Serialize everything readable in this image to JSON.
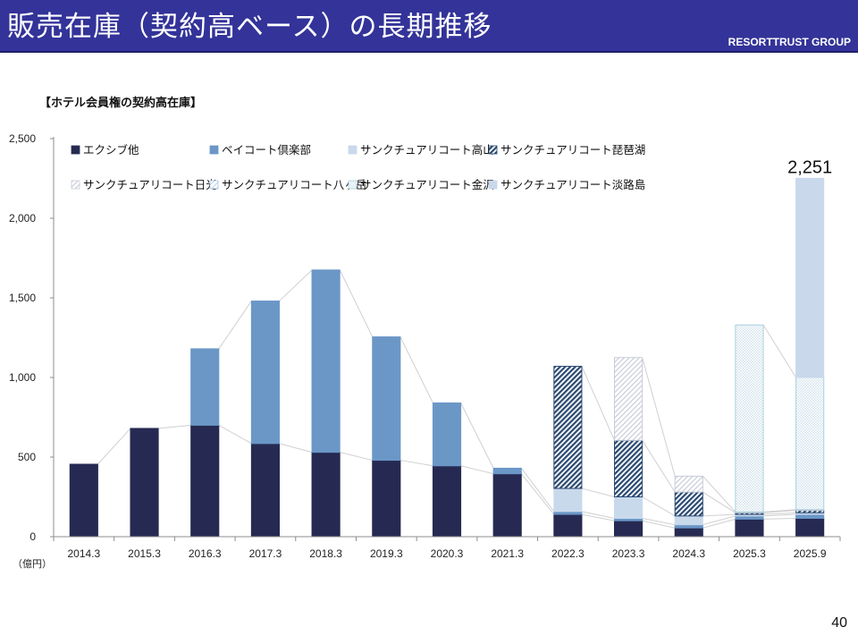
{
  "header": {
    "title": "販売在庫（契約高ベース）の長期推移",
    "brand": "RESORTTRUST GROUP"
  },
  "subtitle": "【ホテル会員権の契約高在庫】",
  "page_number": "40",
  "chart_data": {
    "type": "bar",
    "stacked": true,
    "title": "【ホテル会員権の契約高在庫】",
    "xlabel": "",
    "ylabel": "（億円）",
    "unit_label": "（億円）",
    "ylim": [
      0,
      2500
    ],
    "yticks": [
      0,
      500,
      1000,
      1500,
      2000,
      2500
    ],
    "ytick_labels": [
      "0",
      "500",
      "1,000",
      "1,500",
      "2,000",
      "2,500"
    ],
    "grid": false,
    "legend_position": "top-left",
    "categories": [
      "2014.3",
      "2015.3",
      "2016.3",
      "2017.3",
      "2018.3",
      "2019.3",
      "2020.3",
      "2021.3",
      "2022.3",
      "2023.3",
      "2024.3",
      "2025.3",
      "2025.9"
    ],
    "series": [
      {
        "name": "エクシブ他",
        "color": "#262a52",
        "pattern": "solid",
        "values": [
          455,
          680,
          700,
          585,
          530,
          480,
          445,
          395,
          140,
          100,
          55,
          110,
          115
        ]
      },
      {
        "name": "ベイコート倶楽部",
        "color": "#6b97c7",
        "pattern": "solid",
        "values": [
          0,
          0,
          480,
          895,
          1145,
          775,
          395,
          35,
          18,
          15,
          20,
          20,
          25
        ]
      },
      {
        "name": "サンクチュアリコート高山",
        "color": "#c9d9ec",
        "pattern": "solid",
        "values": [
          0,
          0,
          0,
          0,
          0,
          0,
          0,
          0,
          145,
          135,
          55,
          10,
          10
        ]
      },
      {
        "name": "サンクチュアリコート琵琶湖",
        "color": "#2b4a72",
        "pattern": "dark-hatch",
        "values": [
          0,
          0,
          0,
          0,
          0,
          0,
          0,
          0,
          767,
          355,
          150,
          10,
          15
        ]
      },
      {
        "name": "サンクチュアリコート日光",
        "color": "#c8ccd8",
        "pattern": "light-hatch",
        "values": [
          0,
          0,
          0,
          0,
          0,
          0,
          0,
          0,
          0,
          520,
          100,
          5,
          5
        ]
      },
      {
        "name": "サンクチュアリコート八ヶ岳",
        "color": "#a8c6e6",
        "pattern": "outline",
        "values": [
          0,
          0,
          0,
          0,
          0,
          0,
          0,
          0,
          0,
          0,
          0,
          0,
          0
        ]
      },
      {
        "name": "サンクチュアリコート金沢",
        "color": "#bcd6e4",
        "pattern": "dots",
        "values": [
          0,
          0,
          0,
          0,
          0,
          0,
          0,
          0,
          0,
          0,
          0,
          1175,
          830
        ]
      },
      {
        "name": "サンクチュアリコート淡路島",
        "color": "#c9d8ea",
        "pattern": "solid",
        "values": [
          0,
          0,
          0,
          0,
          0,
          0,
          0,
          0,
          0,
          0,
          0,
          0,
          1251
        ]
      }
    ],
    "annotations": [
      {
        "category": "2025.9",
        "text": "2,251"
      }
    ]
  }
}
